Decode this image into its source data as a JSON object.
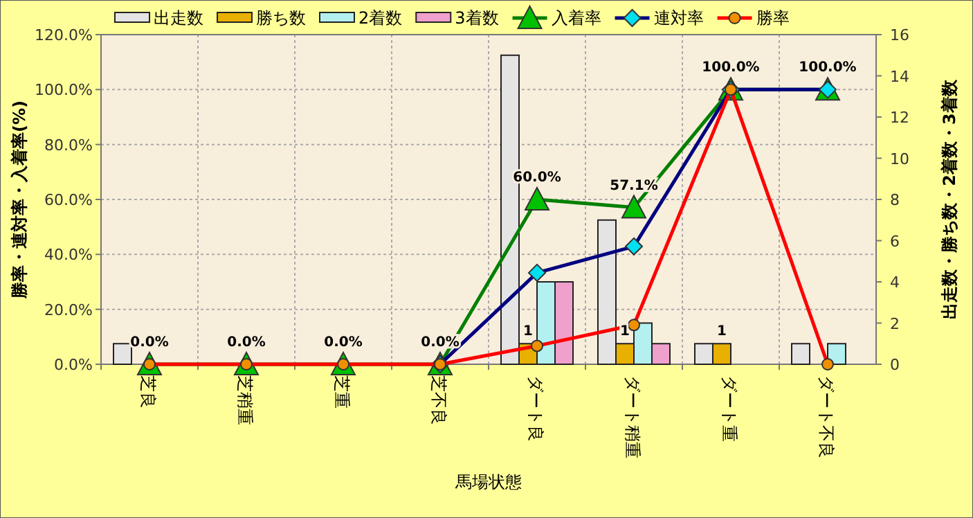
{
  "chart_data": {
    "type": "bar",
    "ylabel": "勝率・連対率・入着率(%)",
    "y2label": "出走数・勝ち数・2着数・3着数",
    "xlabel": "馬場状態",
    "categories": [
      "芝良",
      "芝稍重",
      "芝重",
      "芝不良",
      "ダート良",
      "ダート稍重",
      "ダート重",
      "ダート不良"
    ],
    "ylim": [
      0,
      120
    ],
    "yticks": [
      {
        "value": 0,
        "label": "0.0%"
      },
      {
        "value": 20,
        "label": "20.0%"
      },
      {
        "value": 40,
        "label": "40.0%"
      },
      {
        "value": 60,
        "label": "60.0%"
      },
      {
        "value": 80,
        "label": "80.0%"
      },
      {
        "value": 100,
        "label": "100.0%"
      },
      {
        "value": 120,
        "label": "120.0%"
      }
    ],
    "y2lim": [
      0,
      16
    ],
    "y2ticks": [
      0,
      2,
      4,
      6,
      8,
      10,
      12,
      14,
      16
    ],
    "grid": true,
    "legend": "top",
    "series": [
      {
        "name": "出走数",
        "axis": "y2",
        "color": "#e4e4e4",
        "values": [
          1,
          0,
          0,
          0,
          15,
          7,
          1,
          1
        ]
      },
      {
        "name": "勝ち数",
        "axis": "y2",
        "color": "#e8b000",
        "values": [
          0,
          0,
          0,
          0,
          1,
          1,
          1,
          0
        ],
        "value_labels": [
          null,
          null,
          null,
          null,
          "1",
          "1",
          "1",
          null
        ]
      },
      {
        "name": "2着数",
        "axis": "y2",
        "color": "#b4f0f0",
        "values": [
          0,
          0,
          0,
          0,
          4,
          2,
          0,
          1
        ]
      },
      {
        "name": "3着数",
        "axis": "y2",
        "color": "#f0a0cc",
        "values": [
          0,
          0,
          0,
          0,
          4,
          1,
          0,
          0
        ]
      },
      {
        "name": "入着率",
        "type": "line",
        "axis": "y",
        "color": "#008000",
        "marker": "triangle",
        "colors": [
          "#00c000",
          "#00c000",
          "#00c000",
          "#00c000",
          "#00c000",
          "#00c000",
          "#00c000",
          "#00c000"
        ],
        "values": [
          0,
          0,
          0,
          0,
          60,
          57.1,
          100,
          100
        ],
        "value_labels": [
          "0.0%",
          "0.0%",
          "0.0%",
          "0.0%",
          "60.0%",
          "57.1%",
          "100.0%",
          "100.0%"
        ]
      },
      {
        "name": "連対率",
        "type": "line",
        "axis": "y",
        "color": "#000080",
        "marker": "diamond",
        "colors": [
          null,
          null,
          null,
          "#00e0f0",
          "#00e0f0",
          "#00e0f0",
          "#00e0f0",
          "#00e0f0"
        ],
        "values": [
          null,
          null,
          null,
          0,
          33.3,
          42.9,
          100,
          100
        ]
      },
      {
        "name": "勝率",
        "type": "line",
        "axis": "y",
        "color": "#ff0000",
        "marker": "circle",
        "colors": [
          "#f09000",
          "#f09000",
          "#f09000",
          "#f09000",
          "#f09000",
          "#f09000",
          "#f09000",
          "#f09000"
        ],
        "values": [
          0,
          0,
          0,
          0,
          6.7,
          14.3,
          100,
          0
        ]
      }
    ]
  }
}
